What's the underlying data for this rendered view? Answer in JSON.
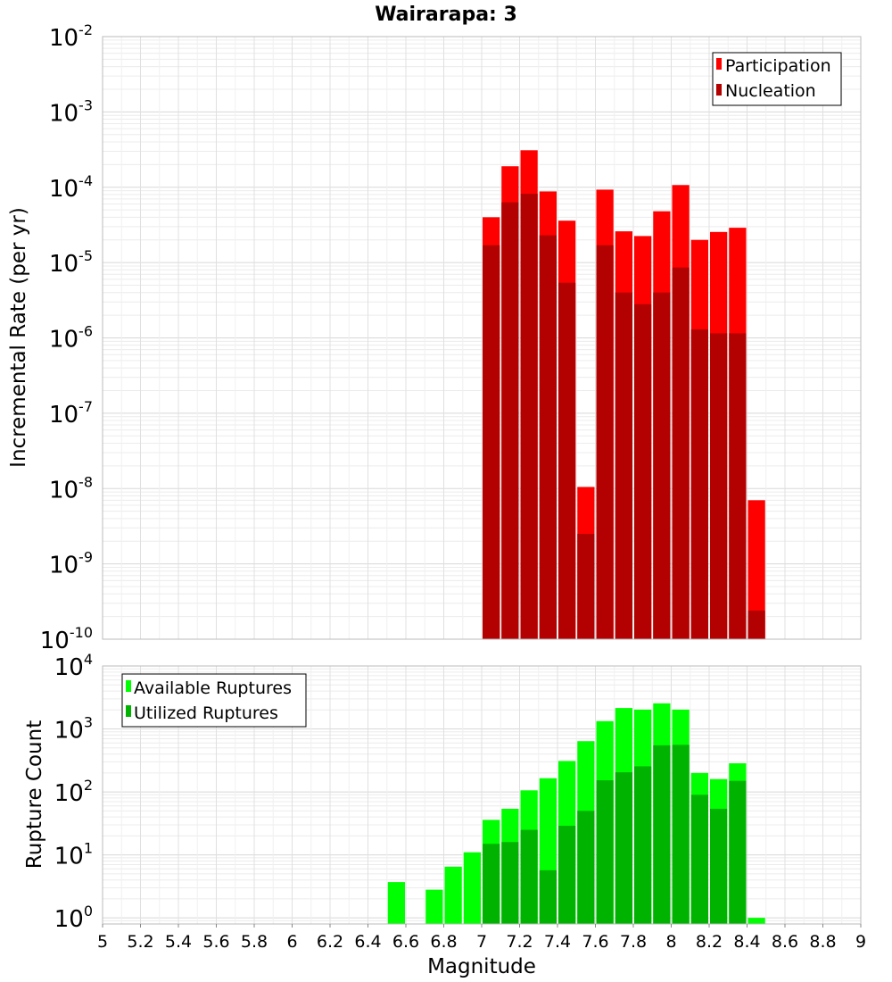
{
  "chart_data": [
    {
      "type": "bar",
      "title": "Wairarapa: 3",
      "ylabel": "Incremental Rate (per yr)",
      "xlabel": "",
      "yscale": "log",
      "ylim": [
        1e-10,
        0.01
      ],
      "xlim": [
        5,
        9
      ],
      "grid": true,
      "legend_position": "top-right",
      "y_tick_labels": [
        {
          "base": "10",
          "exp": "-2"
        },
        {
          "base": "10",
          "exp": "-3"
        },
        {
          "base": "10",
          "exp": "-4"
        },
        {
          "base": "10",
          "exp": "-5"
        },
        {
          "base": "10",
          "exp": "-6"
        },
        {
          "base": "10",
          "exp": "-7"
        },
        {
          "base": "10",
          "exp": "-8"
        },
        {
          "base": "10",
          "exp": "-9"
        },
        {
          "base": "10",
          "exp": "-10"
        }
      ],
      "x": [
        7.05,
        7.15,
        7.25,
        7.35,
        7.45,
        7.55,
        7.65,
        7.75,
        7.85,
        7.95,
        8.05,
        8.15,
        8.25,
        8.35,
        8.45
      ],
      "series": [
        {
          "name": "Participation",
          "color": "#ff0000",
          "values": [
            4e-05,
            0.00019,
            0.00031,
            8.8e-05,
            3.6e-05,
            1.05e-08,
            9.3e-05,
            2.6e-05,
            2.25e-05,
            4.8e-05,
            0.000107,
            2e-05,
            2.55e-05,
            2.9e-05,
            7e-09
          ]
        },
        {
          "name": "Nucleation",
          "color": "#b30000",
          "values": [
            1.7e-05,
            6.3e-05,
            8.2e-05,
            2.3e-05,
            5.4e-06,
            2.5e-09,
            1.7e-05,
            4e-06,
            2.8e-06,
            4e-06,
            8.6e-06,
            1.3e-06,
            1.15e-06,
            1.15e-06,
            2.4e-10
          ]
        }
      ]
    },
    {
      "type": "bar",
      "title": "",
      "ylabel": "Rupture Count",
      "xlabel": "Magnitude",
      "yscale": "log",
      "ylim": [
        0.8,
        10000
      ],
      "xlim": [
        5,
        9
      ],
      "grid": true,
      "legend_position": "top-left",
      "y_tick_labels": [
        {
          "base": "10",
          "exp": "4"
        },
        {
          "base": "10",
          "exp": "3"
        },
        {
          "base": "10",
          "exp": "2"
        },
        {
          "base": "10",
          "exp": "1"
        },
        {
          "base": "10",
          "exp": "0"
        }
      ],
      "x_tick_labels": [
        "5",
        "5.2",
        "5.4",
        "5.6",
        "5.8",
        "6",
        "6.2",
        "6.4",
        "6.6",
        "6.8",
        "7",
        "7.2",
        "7.4",
        "7.6",
        "7.8",
        "8",
        "8.2",
        "8.4",
        "8.6",
        "8.8",
        "9"
      ],
      "x": [
        6.55,
        6.75,
        6.85,
        6.95,
        7.05,
        7.15,
        7.25,
        7.35,
        7.45,
        7.55,
        7.65,
        7.75,
        7.85,
        7.95,
        8.05,
        8.15,
        8.25,
        8.35,
        8.45
      ],
      "series": [
        {
          "name": "Available Ruptures",
          "color": "#00ff00",
          "values": [
            3.7,
            2.8,
            6.5,
            11,
            36,
            54,
            106,
            165,
            310,
            640,
            1330,
            2150,
            2030,
            2550,
            2030,
            200,
            160,
            285,
            1
          ]
        },
        {
          "name": "Utilized Ruptures",
          "color": "#00b300",
          "values": [
            null,
            null,
            null,
            null,
            15,
            16,
            25,
            5.7,
            29,
            50,
            153,
            205,
            255,
            550,
            560,
            90,
            54,
            150,
            null
          ]
        }
      ]
    }
  ]
}
